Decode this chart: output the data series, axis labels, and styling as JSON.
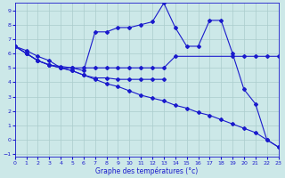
{
  "xlabel": "Graphe des températures (°c)",
  "bg_color": "#cce8e8",
  "grid_color": "#aacccc",
  "line_color": "#1a1acc",
  "xlim": [
    0,
    23
  ],
  "ylim": [
    -1.2,
    9.5
  ],
  "xticks": [
    0,
    1,
    2,
    3,
    4,
    5,
    6,
    7,
    8,
    9,
    10,
    11,
    12,
    13,
    14,
    15,
    16,
    17,
    18,
    19,
    20,
    21,
    22,
    23
  ],
  "yticks": [
    -1,
    0,
    1,
    2,
    3,
    4,
    5,
    6,
    7,
    8,
    9
  ],
  "series": [
    {
      "x": [
        0,
        1,
        2,
        3,
        4,
        5,
        6,
        7,
        8,
        9,
        10,
        11,
        12,
        13,
        14,
        15,
        16,
        17,
        18,
        19,
        20,
        21,
        22,
        23
      ],
      "y": [
        6.5,
        6.0,
        5.5,
        5.2,
        5.0,
        5.0,
        4.8,
        7.5,
        7.5,
        7.8,
        7.8,
        8.0,
        8.2,
        9.5,
        7.8,
        6.5,
        6.5,
        8.3,
        8.3,
        6.0,
        3.5,
        2.5,
        0.0,
        -0.5
      ]
    },
    {
      "x": [
        0,
        1,
        2,
        3,
        4,
        5,
        6,
        7,
        8,
        9,
        10,
        11,
        12,
        13,
        14,
        19,
        20,
        21,
        22,
        23
      ],
      "y": [
        6.5,
        6.0,
        5.5,
        5.2,
        5.1,
        5.0,
        5.0,
        5.0,
        5.0,
        5.0,
        5.0,
        5.0,
        5.0,
        5.0,
        5.8,
        5.8,
        5.8,
        5.8,
        5.8,
        5.8
      ]
    },
    {
      "x": [
        0,
        1,
        2,
        3,
        4,
        5,
        6,
        7,
        8,
        9,
        10,
        11,
        12,
        13
      ],
      "y": [
        6.5,
        6.0,
        5.5,
        5.2,
        5.0,
        4.8,
        4.5,
        4.3,
        4.3,
        4.2,
        4.2,
        4.2,
        4.2,
        4.2
      ]
    },
    {
      "x": [
        0,
        1,
        2,
        3,
        4,
        5,
        6,
        7,
        8,
        9,
        10,
        11,
        12,
        13,
        14,
        15,
        16,
        17,
        18,
        19,
        20,
        21,
        22,
        23
      ],
      "y": [
        6.5,
        6.2,
        5.8,
        5.5,
        5.0,
        4.8,
        4.5,
        4.2,
        3.9,
        3.7,
        3.4,
        3.1,
        2.9,
        2.7,
        2.4,
        2.2,
        1.9,
        1.7,
        1.4,
        1.1,
        0.8,
        0.5,
        0.0,
        -0.5
      ]
    }
  ]
}
